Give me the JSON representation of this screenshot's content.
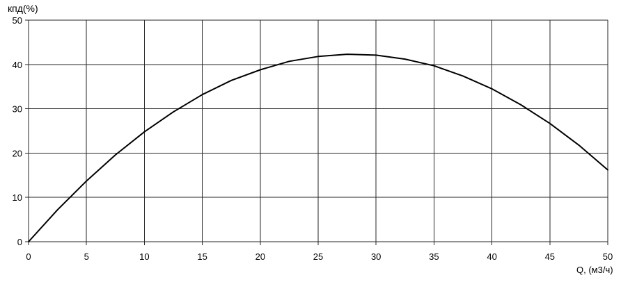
{
  "chart_data": {
    "type": "line",
    "title": "",
    "xlabel": "Q, (м3/ч)",
    "ylabel": "кпд(%)",
    "xlim": [
      0,
      50
    ],
    "ylim": [
      0,
      50
    ],
    "xticks": [
      0,
      5,
      10,
      15,
      20,
      25,
      30,
      35,
      40,
      45,
      50
    ],
    "yticks": [
      0,
      10,
      20,
      30,
      40,
      50
    ],
    "grid": true,
    "legend_position": "none",
    "series": [
      {
        "name": "кпд",
        "x": [
          0,
          2.5,
          5,
          7.5,
          10,
          12.5,
          15,
          17.5,
          20,
          22.5,
          25,
          27.5,
          30,
          32.5,
          35,
          37.5,
          40,
          42.5,
          45,
          47.5,
          50
        ],
        "y": [
          0,
          7.2,
          13.7,
          19.6,
          24.8,
          29.3,
          33.2,
          36.4,
          38.8,
          40.7,
          41.8,
          42.3,
          42.1,
          41.2,
          39.7,
          37.4,
          34.5,
          30.9,
          26.7,
          21.8,
          16.2
        ]
      }
    ],
    "peak": {
      "x": 28,
      "y": 42.3
    },
    "colors": {
      "curve": "#000000",
      "grid": "#262626",
      "background": "#ffffff",
      "text": "#000000"
    }
  }
}
